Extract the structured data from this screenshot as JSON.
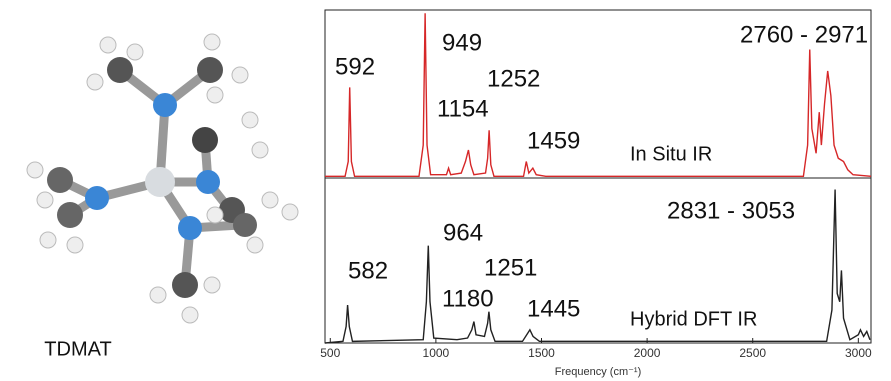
{
  "molecule_label": "TDMAT",
  "chart_data": [
    {
      "type": "line",
      "xlim": [
        475,
        3060
      ],
      "ylim": [
        0,
        1.02
      ],
      "series": [
        {
          "name": "In Situ IR",
          "color": "#d62728",
          "x": [
            475,
            570,
            585,
            592,
            600,
            615,
            920,
            940,
            949,
            958,
            975,
            1050,
            1060,
            1070,
            1120,
            1140,
            1154,
            1165,
            1180,
            1235,
            1245,
            1252,
            1260,
            1275,
            1415,
            1428,
            1440,
            1459,
            1475,
            1520,
            2740,
            2760,
            2770,
            2780,
            2800,
            2815,
            2825,
            2840,
            2855,
            2870,
            2885,
            2905,
            2930,
            2950,
            2975,
            3060
          ],
          "values": [
            0.01,
            0.01,
            0.1,
            0.55,
            0.1,
            0.01,
            0.01,
            0.2,
            1.0,
            0.2,
            0.02,
            0.02,
            0.06,
            0.02,
            0.03,
            0.1,
            0.17,
            0.08,
            0.02,
            0.03,
            0.12,
            0.29,
            0.08,
            0.01,
            0.01,
            0.1,
            0.03,
            0.06,
            0.02,
            0.01,
            0.01,
            0.2,
            0.78,
            0.3,
            0.15,
            0.4,
            0.2,
            0.45,
            0.65,
            0.5,
            0.2,
            0.12,
            0.1,
            0.05,
            0.02,
            0.01
          ]
        }
      ],
      "annotations": [
        "592",
        "949",
        "1154",
        "1252",
        "1459",
        "2760 - 2971"
      ]
    },
    {
      "type": "line",
      "xlim": [
        475,
        3060
      ],
      "ylim": [
        0,
        1.0
      ],
      "x_label": "Frequency (cm⁻¹)",
      "xticks": [
        500,
        1000,
        1500,
        2000,
        2500,
        3000
      ],
      "series": [
        {
          "name": "Hybrid DFT IR",
          "color": "#222222",
          "x": [
            475,
            560,
            575,
            582,
            590,
            605,
            940,
            955,
            964,
            972,
            990,
            1100,
            1150,
            1170,
            1180,
            1190,
            1230,
            1245,
            1251,
            1260,
            1280,
            1410,
            1435,
            1445,
            1460,
            1490,
            2850,
            2875,
            2890,
            2900,
            2912,
            2920,
            2930,
            2960,
            3000,
            3010,
            3025,
            3040,
            3055
          ],
          "values": [
            0,
            0.01,
            0.1,
            0.23,
            0.1,
            0.01,
            0.02,
            0.25,
            0.59,
            0.25,
            0.03,
            0.02,
            0.03,
            0.08,
            0.13,
            0.05,
            0.04,
            0.12,
            0.19,
            0.08,
            0.01,
            0.01,
            0.06,
            0.08,
            0.04,
            0.01,
            0.01,
            0.2,
            0.93,
            0.3,
            0.25,
            0.44,
            0.15,
            0.02,
            0.05,
            0.08,
            0.04,
            0.07,
            0.02
          ]
        }
      ],
      "annotations": [
        "582",
        "964",
        "1180",
        "1251",
        "1445",
        "2831 - 3053"
      ]
    }
  ]
}
